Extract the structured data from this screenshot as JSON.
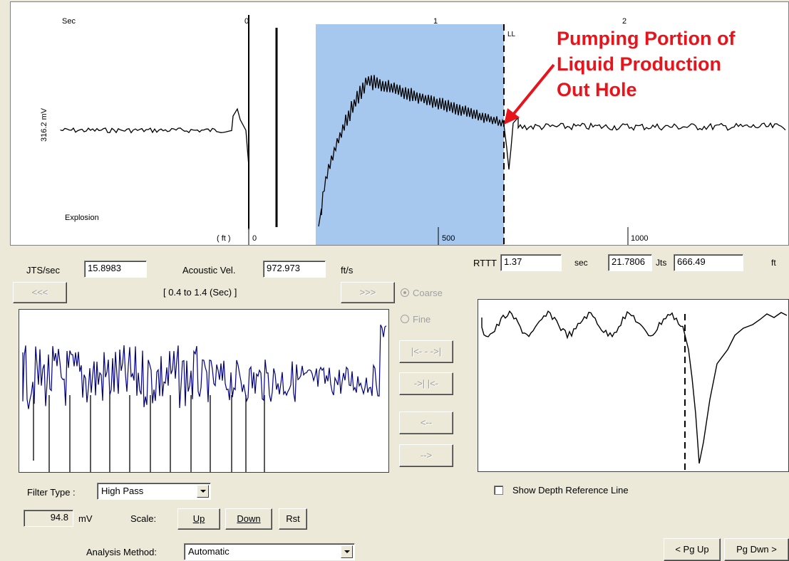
{
  "top_plot": {
    "sec_label": "Sec",
    "sec_ticks": [
      "0",
      "1",
      "2"
    ],
    "y_label": "316.2 mV",
    "explosion_label": "Explosion",
    "ft_label": "( ft )",
    "ft_ticks": [
      "0",
      "500",
      "1000"
    ],
    "ll_label": "LL",
    "annotation": [
      "Pumping Portion of",
      "Liquid Production",
      "Out Hole"
    ],
    "highlight_color": "#a7c8ee",
    "annotation_color": "#e8141c"
  },
  "left_panel": {
    "jts_label": "JTS/sec",
    "jts_value": "15.8983",
    "acoustic_label": "Acoustic Vel.",
    "acoustic_value": "972.973",
    "acoustic_unit": "ft/s",
    "prev_button": "<<<",
    "range_label": "[ 0.4  to  1.4 (Sec) ]",
    "next_button": ">>>",
    "coarse_label": "Coarse",
    "fine_label": "Fine",
    "expand_button": "|<- - ->|",
    "shrink_button": "->| |<-",
    "left_button": "<--",
    "right_button": "-->",
    "filter_label": "Filter Type :",
    "filter_value": "High Pass",
    "mv_value": "94.8",
    "mv_unit": "mV",
    "scale_label": "Scale:",
    "up_button": "Up",
    "down_button": "Down",
    "rst_button": "Rst",
    "trace_color": "#000080"
  },
  "right_panel": {
    "rttt_label": "RTTT",
    "rttt_value": "1.37",
    "sec_unit": "sec",
    "jts_value": "21.7806",
    "jts_unit": "Jts",
    "ft_value": "666.49",
    "ft_unit": "ft",
    "show_depth_label": "Show Depth Reference Line"
  },
  "bottom": {
    "analysis_label": "Analysis Method:",
    "analysis_value": "Automatic",
    "pgup_button": "< Pg Up",
    "pgdown_button": "Pg Dwn >"
  }
}
